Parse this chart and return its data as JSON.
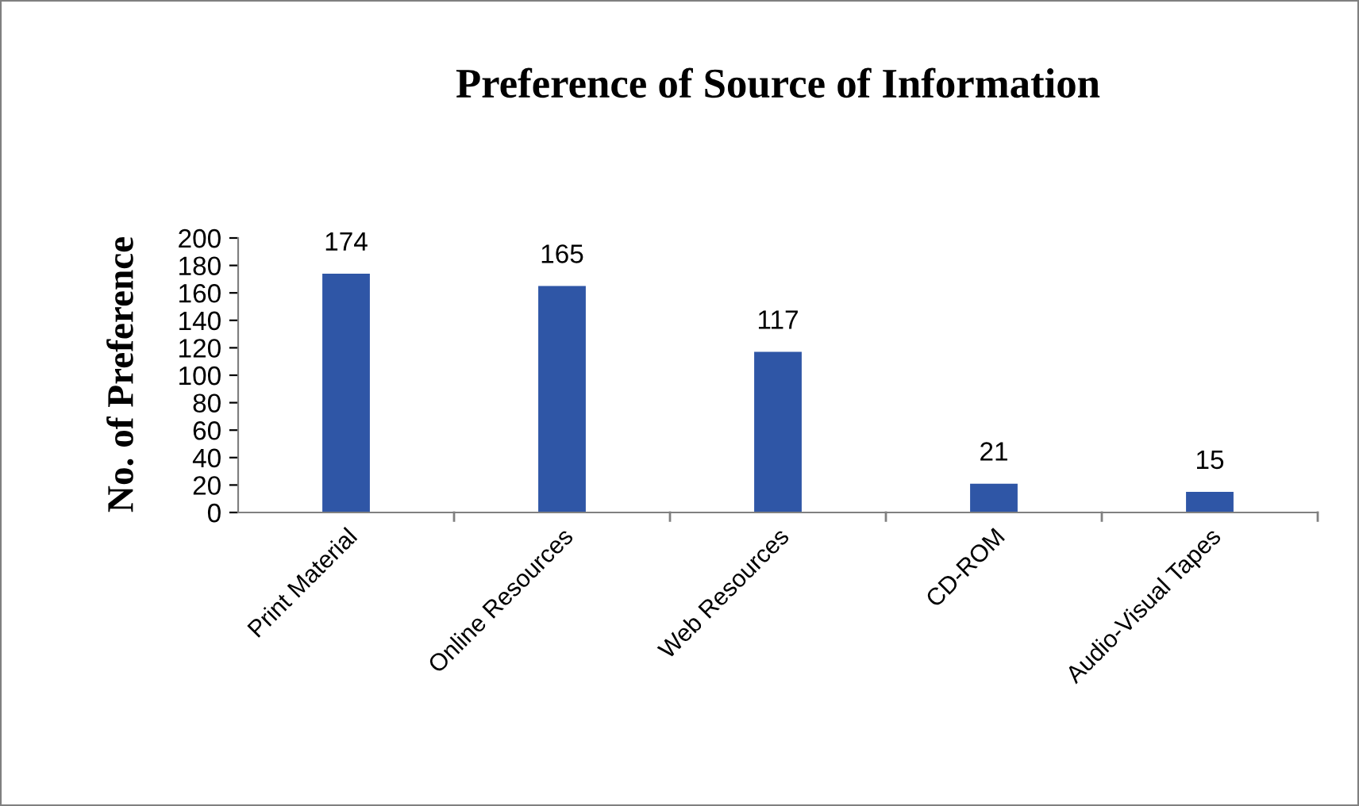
{
  "chart_data": {
    "type": "bar",
    "title": "Preference of Source of Information",
    "ylabel": "No. of Preference",
    "categories": [
      "Print Material",
      "Online Resources",
      "Web Resources",
      "CD-ROM",
      "Audio-Visual Tapes"
    ],
    "values": [
      174,
      165,
      117,
      21,
      15
    ],
    "color": "#2f56a6",
    "ylim": [
      0,
      200
    ],
    "yticks": [
      0,
      20,
      40,
      60,
      80,
      100,
      120,
      140,
      160,
      180,
      200
    ],
    "data_labels": true,
    "grid": false,
    "legend": false
  }
}
